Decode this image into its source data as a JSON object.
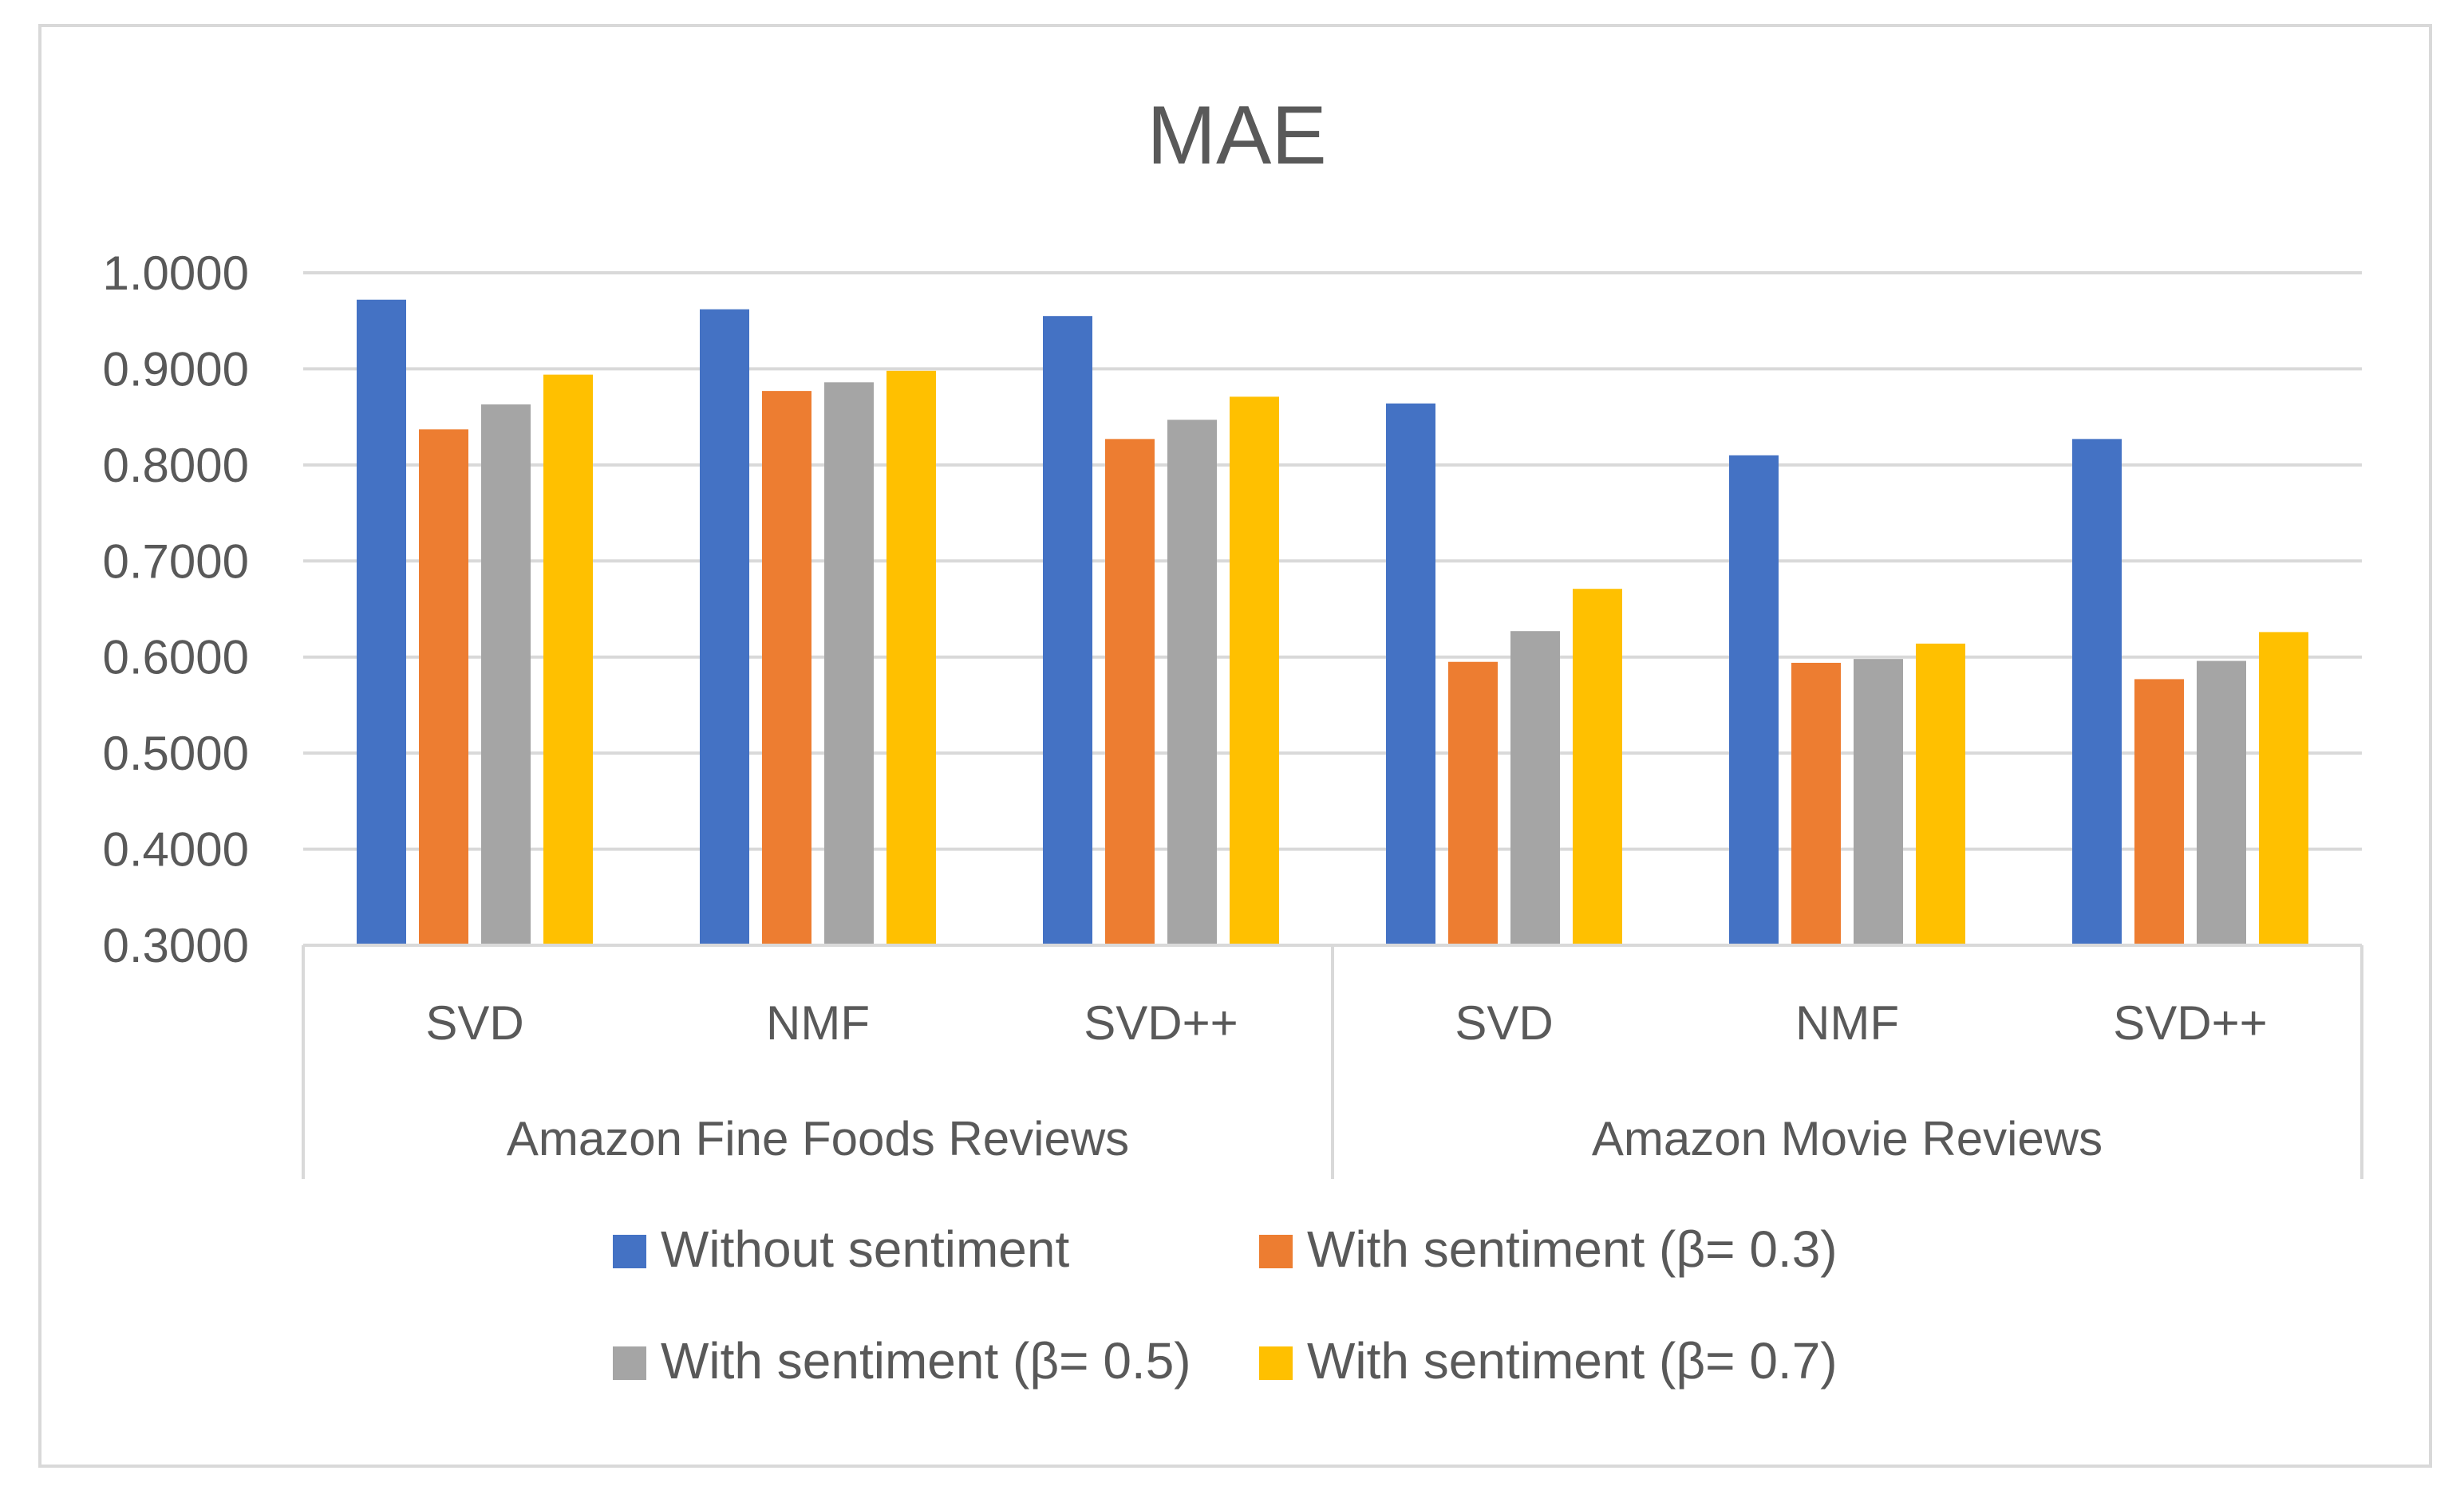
{
  "chart_data": {
    "type": "bar",
    "title": "MAE",
    "xlabel": "",
    "ylabel": "",
    "ylim": [
      0.3,
      1.0
    ],
    "yticks": [
      "1.0000",
      "0.9000",
      "0.8000",
      "0.7000",
      "0.6000",
      "0.5000",
      "0.4000",
      "0.3000"
    ],
    "ytick_values": [
      1.0,
      0.9,
      0.8,
      0.7,
      0.6,
      0.5,
      0.4,
      0.3
    ],
    "groups": [
      {
        "label": "Amazon Fine Foods Reviews",
        "categories": [
          "SVD",
          "NMF",
          "SVD++"
        ]
      },
      {
        "label": "Amazon Movie Reviews",
        "categories": [
          "SVD",
          "NMF",
          "SVD++"
        ]
      }
    ],
    "categories": [
      "SVD",
      "NMF",
      "SVD++",
      "SVD",
      "NMF",
      "SVD++"
    ],
    "series": [
      {
        "name": "Without sentiment",
        "color": "#4472c4",
        "values": [
          0.972,
          0.962,
          0.955,
          0.864,
          0.81,
          0.827
        ]
      },
      {
        "name": "With sentiment (β= 0.3)",
        "color": "#ed7d31",
        "values": [
          0.837,
          0.877,
          0.827,
          0.595,
          0.594,
          0.577
        ]
      },
      {
        "name": "With sentiment (β= 0.5)",
        "color": "#a5a5a5",
        "values": [
          0.863,
          0.886,
          0.847,
          0.627,
          0.598,
          0.596
        ]
      },
      {
        "name": "With sentiment (β= 0.7)",
        "color": "#ffc000",
        "values": [
          0.894,
          0.898,
          0.871,
          0.671,
          0.614,
          0.626
        ]
      }
    ],
    "grid": true,
    "legend_position": "bottom"
  }
}
